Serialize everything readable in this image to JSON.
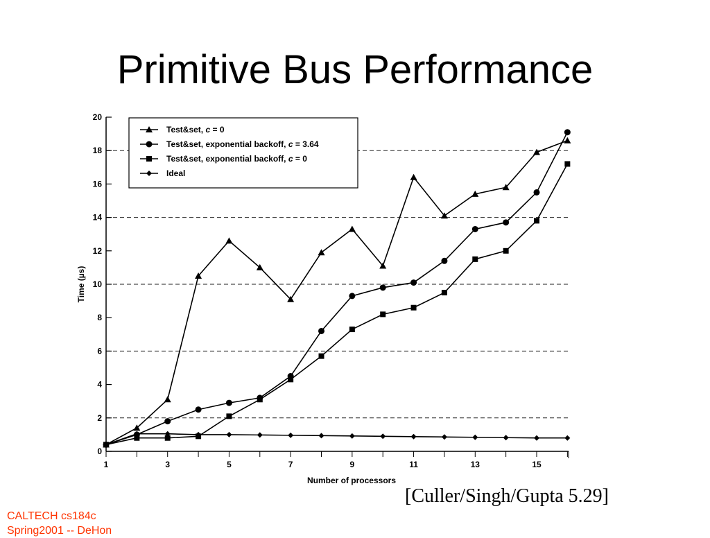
{
  "slide": {
    "title": "Primitive Bus Performance",
    "citation": "[Culler/Singh/Gupta 5.29]",
    "footer_line1": "CALTECH cs184c",
    "footer_line2": "Spring2001 -- DeHon",
    "footer_color": "#ff3300"
  },
  "chart_data": {
    "type": "line",
    "title": "",
    "xlabel": "Number of processors",
    "ylabel": "Time (µs)",
    "xlim": [
      1,
      16.5
    ],
    "ylim": [
      0,
      20
    ],
    "x_ticks": [
      1,
      3,
      5,
      7,
      9,
      11,
      13,
      15
    ],
    "y_ticks": [
      0,
      2,
      4,
      6,
      8,
      10,
      12,
      14,
      16,
      18,
      20
    ],
    "grid": "dashed horizontal lines at y = 2, 6, 10, 14, 18",
    "legend_position": "top-left",
    "x": [
      1,
      2,
      3,
      4,
      5,
      6,
      7,
      8,
      9,
      10,
      11,
      12,
      13,
      14,
      15,
      16
    ],
    "series": [
      {
        "name": "Test&set, c = 0",
        "name_main": "Test&set, ",
        "name_var": "c",
        "name_tail": " = 0",
        "marker": "triangle",
        "values": [
          0.4,
          1.4,
          3.1,
          10.5,
          12.6,
          11.0,
          9.1,
          11.9,
          13.3,
          11.1,
          16.4,
          14.1,
          15.4,
          15.8,
          17.9,
          18.6
        ]
      },
      {
        "name": "Test&set, exponential backoff, c = 3.64",
        "name_main": "Test&set, exponential backoff, ",
        "name_var": "c",
        "name_tail": " = 3.64",
        "marker": "circle",
        "values": [
          0.4,
          1.0,
          1.8,
          2.5,
          2.9,
          3.2,
          4.5,
          7.2,
          9.3,
          9.8,
          10.1,
          11.4,
          13.3,
          13.7,
          15.5,
          19.1
        ]
      },
      {
        "name": "Test&set, exponential backoff, c = 0",
        "name_main": "Test&set, exponential backoff, ",
        "name_var": "c",
        "name_tail": " = 0",
        "marker": "square",
        "values": [
          0.4,
          0.8,
          0.8,
          0.9,
          2.1,
          3.1,
          4.3,
          5.7,
          7.3,
          8.2,
          8.6,
          9.5,
          11.5,
          12.0,
          13.8,
          17.2
        ]
      },
      {
        "name": "Ideal",
        "name_main": "Ideal",
        "name_var": "",
        "name_tail": "",
        "marker": "diamond",
        "values": [
          0.4,
          1.05,
          1.05,
          1.0,
          1.0,
          0.98,
          0.96,
          0.94,
          0.92,
          0.9,
          0.88,
          0.86,
          0.84,
          0.82,
          0.8,
          0.8
        ]
      }
    ]
  }
}
